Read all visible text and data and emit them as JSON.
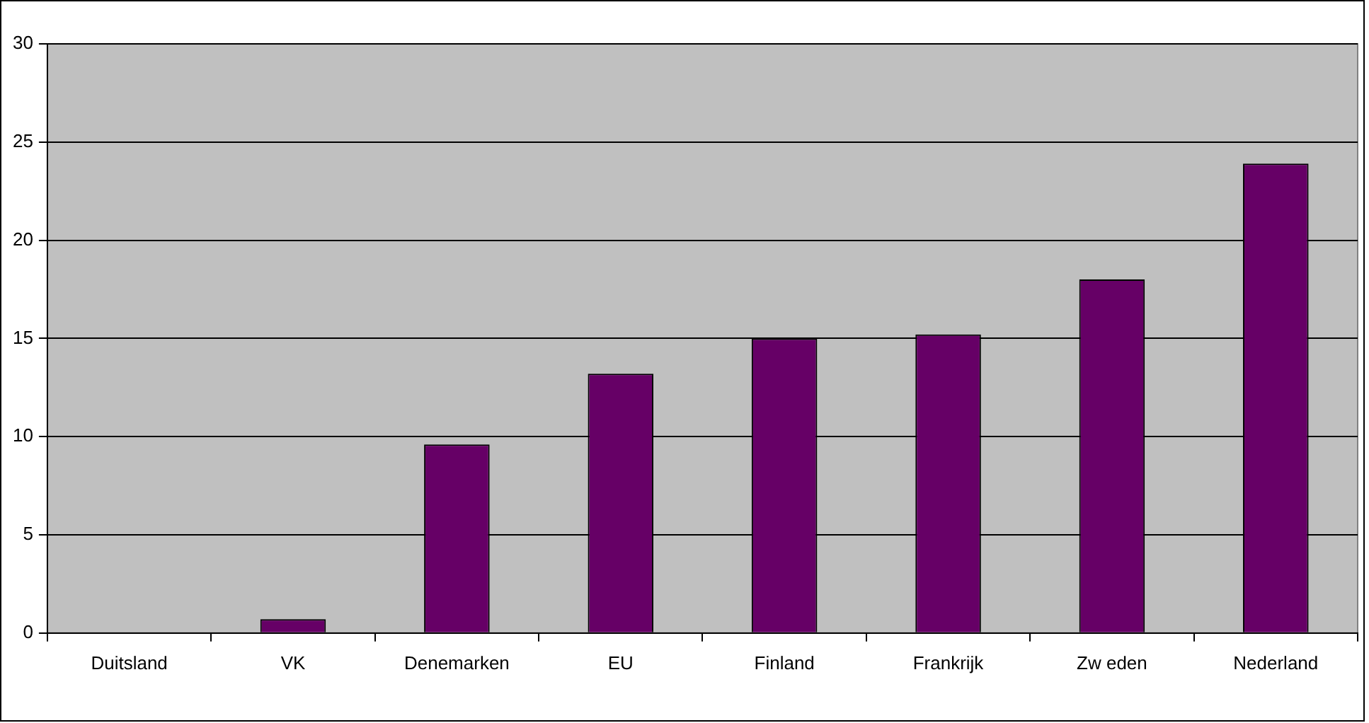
{
  "chart_data": {
    "type": "bar",
    "categories": [
      "Duitsland",
      "VK",
      "Denemarken",
      "EU",
      "Finland",
      "Frankrijk",
      "Zw eden",
      "Nederland"
    ],
    "values": [
      0,
      0.7,
      9.6,
      13.2,
      15.0,
      15.2,
      18.0,
      23.9
    ],
    "color": "#660066",
    "ylim": [
      0,
      30
    ],
    "yticks": [
      0,
      5,
      10,
      15,
      20,
      25,
      30
    ],
    "grid": "y",
    "legend": false
  }
}
